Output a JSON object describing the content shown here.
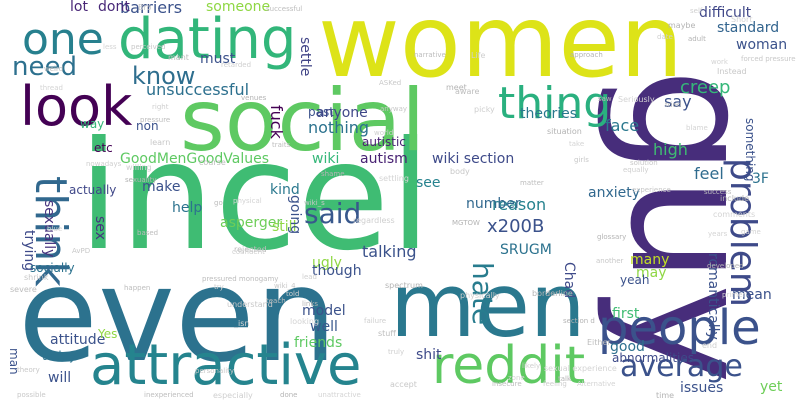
{
  "background": "#ffffff",
  "words": [
    {
      "text": "incel",
      "color": "#3fbc73"
    },
    {
      "text": "women",
      "color": "#dde318"
    },
    {
      "text": "even",
      "color": "#2c728e"
    },
    {
      "text": "guy",
      "color": "#472d7b"
    },
    {
      "text": "men",
      "color": "#2a788e"
    },
    {
      "text": "social",
      "color": "#5ec962"
    },
    {
      "text": "attractive",
      "color": "#25848e"
    },
    {
      "text": "dating",
      "color": "#32b67a"
    },
    {
      "text": "look",
      "color": "#440154"
    },
    {
      "text": "people",
      "color": "#3b528b"
    },
    {
      "text": "reddit",
      "color": "#5ec962"
    },
    {
      "text": "problem",
      "color": "#3e4a89"
    },
    {
      "text": "think",
      "color": "#31688e"
    },
    {
      "text": "thing",
      "color": "#2ab07f"
    },
    {
      "text": "one",
      "color": "#27808e"
    },
    {
      "text": "need",
      "color": "#2d708e"
    },
    {
      "text": "know",
      "color": "#2e6e8e"
    },
    {
      "text": "said",
      "color": "#38588c"
    },
    {
      "text": "average",
      "color": "#3b528b"
    },
    {
      "text": "hate",
      "color": "#287c8e"
    },
    {
      "text": "GoodMenGoodValues",
      "color": "#5ec962"
    },
    {
      "text": "wiki",
      "color": "#35b779"
    },
    {
      "text": "autism",
      "color": "#482173"
    },
    {
      "text": "wiki section",
      "color": "#3e4a89"
    },
    {
      "text": "x200B",
      "color": "#3b528b"
    },
    {
      "text": "SRUGM",
      "color": "#2c728e"
    },
    {
      "text": "reason",
      "color": "#26828e"
    },
    {
      "text": "number",
      "color": "#31688e"
    },
    {
      "text": "talking",
      "color": "#3b528b"
    },
    {
      "text": "feel",
      "color": "#2f6b8e"
    },
    {
      "text": "high",
      "color": "#3fbc73"
    },
    {
      "text": "face",
      "color": "#2a788e"
    },
    {
      "text": "creep",
      "color": "#35b779"
    },
    {
      "text": "say",
      "color": "#3b528b"
    },
    {
      "text": "standard",
      "color": "#32648e"
    },
    {
      "text": "woman",
      "color": "#3b528b"
    },
    {
      "text": "difficult",
      "color": "#3f4788"
    },
    {
      "text": "someone",
      "color": "#8fd744"
    },
    {
      "text": "barriers",
      "color": "#3b528b"
    },
    {
      "text": "dont",
      "color": "#482878"
    },
    {
      "text": "lot",
      "color": "#482576"
    },
    {
      "text": "unsuccessful",
      "color": "#2d708e"
    },
    {
      "text": "must",
      "color": "#3b528b"
    },
    {
      "text": "fuck",
      "color": "#440154"
    },
    {
      "text": "settle",
      "color": "#414487"
    },
    {
      "text": "past",
      "color": "#3b528b"
    },
    {
      "text": "autistic",
      "color": "#482173"
    },
    {
      "text": "anyone",
      "color": "#3f4788"
    },
    {
      "text": "nothing",
      "color": "#2c728e"
    },
    {
      "text": "theories",
      "color": "#2a788e"
    },
    {
      "text": "etc",
      "color": "#440154"
    },
    {
      "text": "non",
      "color": "#3b528b"
    },
    {
      "text": "way",
      "color": "#35b779"
    },
    {
      "text": "make",
      "color": "#3b528b"
    },
    {
      "text": "kind",
      "color": "#2a788e"
    },
    {
      "text": "still",
      "color": "#8fd744"
    },
    {
      "text": "actually",
      "color": "#3f4788"
    },
    {
      "text": "sexually",
      "color": "#46337e"
    },
    {
      "text": "trying",
      "color": "#3e4a89"
    },
    {
      "text": "help",
      "color": "#2c728e"
    },
    {
      "text": "asperger",
      "color": "#6ece58"
    },
    {
      "text": "sex",
      "color": "#46337e"
    },
    {
      "text": "socially",
      "color": "#2c728e"
    },
    {
      "text": "going",
      "color": "#3b528b"
    },
    {
      "text": "ugly",
      "color": "#8fd744"
    },
    {
      "text": "though",
      "color": "#3b528b"
    },
    {
      "text": "model",
      "color": "#3b528b"
    },
    {
      "text": "well",
      "color": "#38588c"
    },
    {
      "text": "friends",
      "color": "#5ec962"
    },
    {
      "text": "shit",
      "color": "#3e4a89"
    },
    {
      "text": "see",
      "color": "#26828e"
    },
    {
      "text": "anxiety",
      "color": "#31688e"
    },
    {
      "text": "3F",
      "color": "#2c728e"
    },
    {
      "text": "romantically",
      "color": "#3b528b"
    },
    {
      "text": "many",
      "color": "#c2df23"
    },
    {
      "text": "may",
      "color": "#8fd744"
    },
    {
      "text": "mean",
      "color": "#3b528b"
    },
    {
      "text": "first",
      "color": "#3fbc73"
    },
    {
      "text": "good",
      "color": "#2d708e"
    },
    {
      "text": "issues",
      "color": "#3b528b"
    },
    {
      "text": "yet",
      "color": "#6ece58"
    },
    {
      "text": "Chad",
      "color": "#3e4a89"
    },
    {
      "text": "attitude",
      "color": "#3b528b"
    },
    {
      "text": "Yes",
      "color": "#8fd744"
    },
    {
      "text": "today",
      "color": "#2c728e"
    },
    {
      "text": "will",
      "color": "#3b528b"
    },
    {
      "text": "man",
      "color": "#3b528b"
    },
    {
      "text": "yeah",
      "color": "#3b528b"
    },
    {
      "text": "something",
      "color": "#3b528b"
    },
    {
      "text": "abnormalities",
      "color": "#3e4a89"
    }
  ],
  "small_words": [
    {
      "text": "Bro"
    },
    {
      "text": "successful"
    },
    {
      "text": "self"
    },
    {
      "text": "maybe"
    },
    {
      "text": "less"
    },
    {
      "text": "perceived"
    },
    {
      "text": "mant"
    },
    {
      "text": "date"
    },
    {
      "text": "adult"
    },
    {
      "text": "Short"
    },
    {
      "text": "forced pressure"
    },
    {
      "text": "narrative"
    },
    {
      "text": "Life"
    },
    {
      "text": "approach"
    },
    {
      "text": "work"
    },
    {
      "text": "Instead"
    },
    {
      "text": "weird"
    },
    {
      "text": "retarded"
    },
    {
      "text": "meet"
    },
    {
      "text": "thread"
    },
    {
      "text": "ASKed"
    },
    {
      "text": "aware"
    },
    {
      "text": "right"
    },
    {
      "text": "venues"
    },
    {
      "text": "Seriously"
    },
    {
      "text": "anyway"
    },
    {
      "text": "pressure"
    },
    {
      "text": "picky"
    },
    {
      "text": "tried"
    },
    {
      "text": "blame"
    },
    {
      "text": "learn"
    },
    {
      "text": "traits"
    },
    {
      "text": "world"
    },
    {
      "text": "situation"
    },
    {
      "text": "take"
    },
    {
      "text": "girls"
    },
    {
      "text": "course"
    },
    {
      "text": "nowadays"
    },
    {
      "text": "shame"
    },
    {
      "text": "settling"
    },
    {
      "text": "solution"
    },
    {
      "text": "success"
    },
    {
      "text": "willing"
    },
    {
      "text": "sexuality"
    },
    {
      "text": "physical"
    },
    {
      "text": "body"
    },
    {
      "text": "matter"
    },
    {
      "text": "equally"
    },
    {
      "text": "include"
    },
    {
      "text": "blue"
    },
    {
      "text": "AvPD"
    },
    {
      "text": "rejected"
    },
    {
      "text": "confident"
    },
    {
      "text": "MGTOW"
    },
    {
      "text": "comments"
    },
    {
      "text": "experience"
    },
    {
      "text": "based"
    },
    {
      "text": "regardless"
    },
    {
      "text": "glossary"
    },
    {
      "text": "game"
    },
    {
      "text": "shrink"
    },
    {
      "text": "happen"
    },
    {
      "text": "told"
    },
    {
      "text": "spectrum"
    },
    {
      "text": "years"
    },
    {
      "text": "another"
    },
    {
      "text": "Either"
    },
    {
      "text": "lead"
    },
    {
      "text": "links"
    },
    {
      "text": "looking"
    },
    {
      "text": "wiki_4"
    },
    {
      "text": "pressured monogamy"
    },
    {
      "text": "physically"
    },
    {
      "text": "developed"
    },
    {
      "text": "try"
    },
    {
      "text": "understand"
    },
    {
      "text": "teach"
    },
    {
      "text": "failure"
    },
    {
      "text": "borderline"
    },
    {
      "text": "primer"
    },
    {
      "text": "theory"
    },
    {
      "text": "stuff"
    },
    {
      "text": "truly"
    },
    {
      "text": "section d"
    },
    {
      "text": "sexual experience"
    },
    {
      "text": "possible"
    },
    {
      "text": "inexperienced"
    },
    {
      "text": "especially"
    },
    {
      "text": "done"
    },
    {
      "text": "unattractive"
    },
    {
      "text": "accept"
    },
    {
      "text": "insecure"
    },
    {
      "text": "feeling"
    },
    {
      "text": "time"
    },
    {
      "text": "Alternative"
    },
    {
      "text": "personality"
    },
    {
      "text": "severe"
    },
    {
      "text": "likely"
    },
    {
      "text": "talk"
    },
    {
      "text": "_isn"
    },
    {
      "text": "wiki_s"
    },
    {
      "text": "go"
    },
    {
      "text": "end"
    },
    {
      "text": "saw"
    },
    {
      "text": "zone"
    }
  ]
}
